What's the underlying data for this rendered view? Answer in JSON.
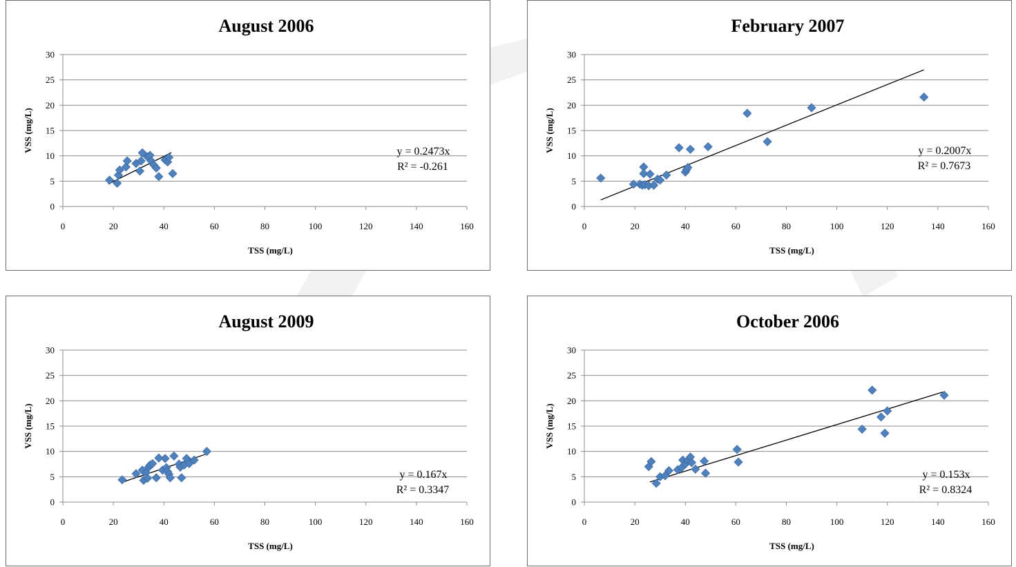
{
  "chart_data": [
    {
      "type": "scatter",
      "title": "August 2006",
      "xlabel": "TSS (mg/L)",
      "ylabel": "VSS (mg/L)",
      "xlim": [
        0,
        160
      ],
      "ylim": [
        0,
        30
      ],
      "xticks": [
        "0",
        "20",
        "40",
        "60",
        "80",
        "100",
        "120",
        "140",
        "160"
      ],
      "yticks": [
        "0",
        "5",
        "10",
        "15",
        "20",
        "25",
        "30"
      ],
      "grid": "horizontal",
      "marker_color": "#4f81bd",
      "trendline": {
        "slope": 0.2473,
        "x_range": [
          18,
          43
        ]
      },
      "equation": "y = 0.2473x",
      "r2": "R² = -0.261",
      "points": [
        [
          18.5,
          5.2
        ],
        [
          21.5,
          4.6
        ],
        [
          22,
          6.2
        ],
        [
          22.5,
          7.2
        ],
        [
          25,
          7.8
        ],
        [
          25.5,
          9.0
        ],
        [
          29,
          8.5
        ],
        [
          30.5,
          7.0
        ],
        [
          31,
          9.0
        ],
        [
          31.5,
          10.6
        ],
        [
          33.5,
          9.8
        ],
        [
          34.5,
          10.1
        ],
        [
          35,
          9.0
        ],
        [
          36,
          8.2
        ],
        [
          37,
          7.6
        ],
        [
          38,
          5.9
        ],
        [
          40.5,
          9.2
        ],
        [
          41.5,
          8.8
        ],
        [
          42,
          9.7
        ],
        [
          43.5,
          6.5
        ]
      ]
    },
    {
      "type": "scatter",
      "title": "February 2007",
      "xlabel": "TSS (mg/L)",
      "ylabel": "VSS (mg/L)",
      "xlim": [
        0,
        160
      ],
      "ylim": [
        0,
        30
      ],
      "xticks": [
        "0",
        "20",
        "40",
        "60",
        "80",
        "100",
        "120",
        "140",
        "160"
      ],
      "yticks": [
        "0",
        "5",
        "10",
        "15",
        "20",
        "25",
        "30"
      ],
      "grid": "horizontal",
      "marker_color": "#4f81bd",
      "trendline": {
        "slope": 0.2007,
        "x_range": [
          6.5,
          134.5
        ]
      },
      "equation": "y = 0.2007x",
      "r2": "R² = 0.7673",
      "points": [
        [
          6.5,
          5.6
        ],
        [
          19.5,
          4.4
        ],
        [
          22,
          4.4
        ],
        [
          23,
          4.2
        ],
        [
          23.5,
          7.8
        ],
        [
          23.5,
          6.5
        ],
        [
          24,
          4.3
        ],
        [
          25.5,
          4.1
        ],
        [
          26,
          6.4
        ],
        [
          27.5,
          4.2
        ],
        [
          29,
          5.4
        ],
        [
          30,
          5.2
        ],
        [
          32.5,
          6.2
        ],
        [
          37.5,
          11.6
        ],
        [
          40,
          6.8
        ],
        [
          40.5,
          7.3
        ],
        [
          41,
          7.7
        ],
        [
          42,
          11.3
        ],
        [
          49,
          11.8
        ],
        [
          64.5,
          18.4
        ],
        [
          72.5,
          12.8
        ],
        [
          90,
          19.5
        ],
        [
          134.5,
          21.6
        ]
      ]
    },
    {
      "type": "scatter",
      "title": "August 2009",
      "xlabel": "TSS (mg/L)",
      "ylabel": "VSS (mg/L)",
      "xlim": [
        0,
        160
      ],
      "ylim": [
        0,
        30
      ],
      "xticks": [
        "0",
        "20",
        "40",
        "60",
        "80",
        "100",
        "120",
        "140",
        "160"
      ],
      "yticks": [
        "0",
        "5",
        "10",
        "15",
        "20",
        "25",
        "30"
      ],
      "grid": "horizontal",
      "marker_color": "#4f81bd",
      "trendline": {
        "slope": 0.167,
        "x_range": [
          23,
          57
        ]
      },
      "equation": "y = 0.167x",
      "r2": "R² = 0.3347",
      "points": [
        [
          23.5,
          4.4
        ],
        [
          29,
          5.6
        ],
        [
          31.5,
          6.3
        ],
        [
          32,
          4.3
        ],
        [
          33,
          5.8
        ],
        [
          33.5,
          4.7
        ],
        [
          34,
          6.9
        ],
        [
          34.5,
          7.3
        ],
        [
          35.5,
          7.6
        ],
        [
          37,
          4.8
        ],
        [
          38,
          8.7
        ],
        [
          39.5,
          6.3
        ],
        [
          40.5,
          8.6
        ],
        [
          41,
          6.8
        ],
        [
          41.5,
          6.0
        ],
        [
          42,
          5.5
        ],
        [
          42.5,
          4.8
        ],
        [
          44,
          9.1
        ],
        [
          46,
          7.5
        ],
        [
          46.5,
          6.9
        ],
        [
          47,
          4.8
        ],
        [
          48,
          7.3
        ],
        [
          49,
          8.6
        ],
        [
          50,
          7.6
        ],
        [
          52,
          8.3
        ],
        [
          57,
          10.0
        ]
      ]
    },
    {
      "type": "scatter",
      "title": "October 2006",
      "xlabel": "TSS (mg/L)",
      "ylabel": "VSS (mg/L)",
      "xlim": [
        0,
        160
      ],
      "ylim": [
        0,
        30
      ],
      "xticks": [
        "0",
        "20",
        "40",
        "60",
        "80",
        "100",
        "120",
        "140",
        "160"
      ],
      "yticks": [
        "0",
        "5",
        "10",
        "15",
        "20",
        "25",
        "30"
      ],
      "grid": "horizontal",
      "marker_color": "#4f81bd",
      "trendline": {
        "slope": 0.153,
        "x_range": [
          26,
          142
        ]
      },
      "equation": "y = 0.153x",
      "r2": "R² = 0.8324",
      "points": [
        [
          25.5,
          7.0
        ],
        [
          26.5,
          8.0
        ],
        [
          28.5,
          3.7
        ],
        [
          30,
          5.0
        ],
        [
          32,
          5.2
        ],
        [
          33.5,
          6.2
        ],
        [
          37,
          6.4
        ],
        [
          38.5,
          6.8
        ],
        [
          39,
          8.3
        ],
        [
          40,
          7.5
        ],
        [
          41,
          8.2
        ],
        [
          42,
          8.9
        ],
        [
          42.5,
          7.8
        ],
        [
          44,
          6.5
        ],
        [
          47.5,
          8.1
        ],
        [
          48,
          5.7
        ],
        [
          60.5,
          10.4
        ],
        [
          61,
          7.9
        ],
        [
          110,
          14.4
        ],
        [
          114,
          22.1
        ],
        [
          117.5,
          16.8
        ],
        [
          119,
          13.6
        ],
        [
          120,
          18.0
        ],
        [
          142.5,
          21.1
        ]
      ]
    }
  ]
}
